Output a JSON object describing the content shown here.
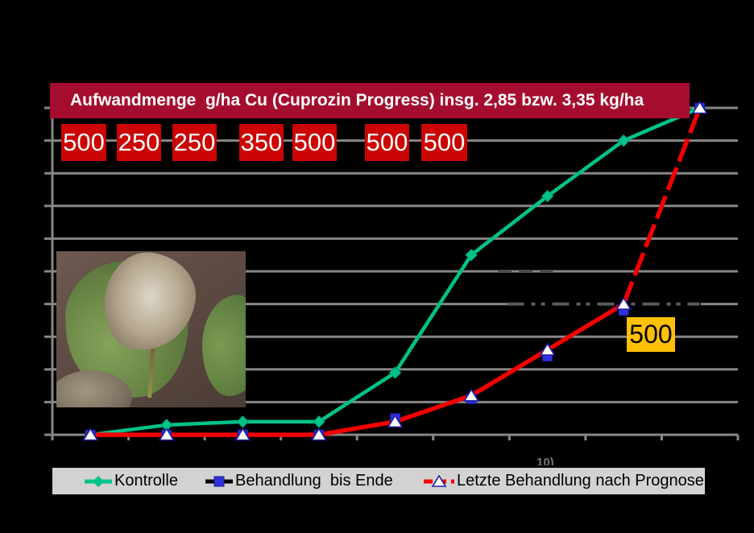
{
  "slide": {
    "background": "#000000",
    "banner": {
      "text": "Aufwandmenge  g/ha Cu (Cuprozin Progress) insg. 2,85 bzw. 3,35 kg/ha",
      "bg": "#A50D2E",
      "color": "#FFFFFF"
    },
    "dose_boxes": {
      "bg": "#CC0404",
      "color": "#FFFFFF",
      "values": [
        "500",
        "250",
        "250",
        "350",
        "500",
        "500",
        "500"
      ]
    },
    "callout": {
      "text": "500",
      "bg": "#FFC107",
      "color": "#000000"
    },
    "axis_text_fragment": "10)",
    "photo": "potato-leaf-late-blight"
  },
  "legend": {
    "bg": "#D2D2D2",
    "items": [
      {
        "label": "Kontrolle",
        "marker": "diamond",
        "marker_color": "#00C389",
        "line_color": "#00C389",
        "line_style": "solid"
      },
      {
        "label": "Behandlung  bis Ende",
        "marker": "square",
        "marker_color": "#3030DC",
        "line_color": "#000000",
        "line_style": "solid"
      },
      {
        "label": "Letzte Behandlung nach Prognose",
        "marker": "triangle",
        "marker_color": "#FFFFFF",
        "line_color": "#F40000",
        "line_style": "dashed"
      }
    ]
  },
  "chart_data": {
    "type": "line",
    "n_points": 9,
    "x_tick_labels_visible": false,
    "ylim": [
      0,
      100
    ],
    "gridline_step": 10,
    "gridline_color": "#878787",
    "series": [
      {
        "name": "Kontrolle",
        "color": "#00C389",
        "marker": "diamond",
        "values": [
          0,
          3,
          4,
          4,
          19,
          55,
          73,
          90,
          100
        ]
      },
      {
        "name": "Behandlung  bis Ende",
        "color": "#000000",
        "marker": "square",
        "marker_color": "#3030DC",
        "values": [
          0,
          0,
          0,
          0,
          5,
          11,
          24,
          38,
          100
        ]
      },
      {
        "name": "Letzte Behandlung nach Prognose",
        "color": "#F40000",
        "marker": "triangle",
        "marker_color": "#FFFFFF",
        "values": [
          0,
          0,
          0,
          0,
          4,
          12,
          26,
          40,
          100
        ]
      }
    ],
    "annotations": [
      {
        "type": "dashed_line",
        "at_value": 50,
        "x_from_point": 5.35,
        "x_to_point": 6.07,
        "color": "#4B4B4B"
      },
      {
        "type": "dashed_line",
        "at_value": 40,
        "x_from_point": 5.47,
        "x_to_point": 8.0,
        "color": "#5A5A5A"
      },
      {
        "type": "callout",
        "text": "500",
        "series": "Letzte Behandlung nach Prognose",
        "point_index": 7
      }
    ]
  }
}
